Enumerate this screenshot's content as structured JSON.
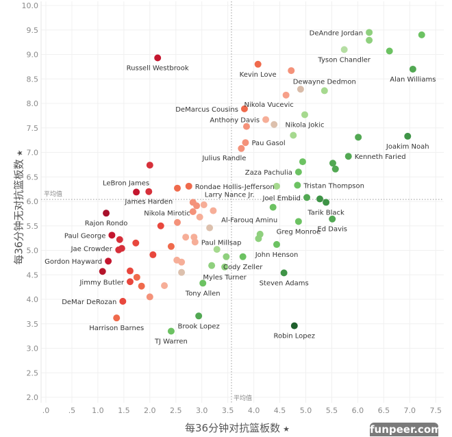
{
  "chart_data": {
    "type": "scatter",
    "title": "",
    "xlabel": "每36分钟对抗篮板数",
    "ylabel": "每36分钟无对抗篮板数",
    "xlim": [
      0,
      7.5
    ],
    "ylim": [
      2.0,
      10.0
    ],
    "x_ticks": [
      ".0",
      ".5",
      "1.0",
      "1.5",
      "2.0",
      "2.5",
      "3.0",
      "3.5",
      "4.0",
      "4.5",
      "5.0",
      "5.5",
      "6.0",
      "6.5",
      "7.0",
      "7.5"
    ],
    "y_ticks": [
      "2.0",
      "2.5",
      "3.0",
      "3.5",
      "4.0",
      "4.5",
      "5.0",
      "5.5",
      "6.0",
      "6.5",
      "7.0",
      "7.5",
      "8.0",
      "8.5",
      "9.0",
      "9.5",
      "10.0"
    ],
    "grid": true,
    "reference_lines": {
      "label": "平均值",
      "x_avg": 3.57,
      "y_avg": 6.04
    },
    "points": [
      {
        "name": "Russell Westbrook",
        "x": 2.15,
        "y": 8.93,
        "color": "#c4172f",
        "label_pos": "below"
      },
      {
        "name": "DeAndre Jordan",
        "x": 6.22,
        "y": 9.45,
        "color": "#8fd07e",
        "label_pos": "left"
      },
      {
        "name": "",
        "x": 7.23,
        "y": 9.4,
        "color": "#6cc262"
      },
      {
        "name": "",
        "x": 6.22,
        "y": 9.29,
        "color": "#8fd07e"
      },
      {
        "name": "Tyson Chandler",
        "x": 5.74,
        "y": 9.1,
        "color": "#b5deA3",
        "label_pos": "below"
      },
      {
        "name": "",
        "x": 6.61,
        "y": 9.07,
        "color": "#6cc262"
      },
      {
        "name": "Alan Williams",
        "x": 7.06,
        "y": 8.7,
        "color": "#52a853",
        "label_pos": "below"
      },
      {
        "name": "Kevin Love",
        "x": 4.08,
        "y": 8.8,
        "color": "#ef6a4c",
        "label_pos": "below"
      },
      {
        "name": "",
        "x": 4.72,
        "y": 8.67,
        "color": "#f4927a"
      },
      {
        "name": "",
        "x": 4.9,
        "y": 8.29,
        "color": "#d9bca9"
      },
      {
        "name": "Dewayne Dedmon",
        "x": 5.36,
        "y": 8.26,
        "color": "#a6d98f",
        "label_pos": "above"
      },
      {
        "name": "Nikola Vucevic",
        "x": 4.62,
        "y": 8.17,
        "color": "#f6a08a",
        "label_pos": "below-left"
      },
      {
        "name": "DeMarcus Cousins",
        "x": 3.82,
        "y": 7.89,
        "color": "#ef6a4c",
        "label_pos": "left"
      },
      {
        "name": "Nikola Jokic",
        "x": 4.98,
        "y": 7.77,
        "color": "#a6d98f",
        "label_pos": "below"
      },
      {
        "name": "Anthony Davis",
        "x": 4.23,
        "y": 7.67,
        "color": "#f6ae98",
        "label_pos": "left"
      },
      {
        "name": "",
        "x": 4.39,
        "y": 7.57,
        "color": "#dcc0ad"
      },
      {
        "name": "",
        "x": 3.86,
        "y": 7.53,
        "color": "#f4927a"
      },
      {
        "name": "",
        "x": 4.76,
        "y": 7.35,
        "color": "#a6d98f"
      },
      {
        "name": "",
        "x": 6.01,
        "y": 7.31,
        "color": "#52a853"
      },
      {
        "name": "Joakim Noah",
        "x": 6.96,
        "y": 7.33,
        "color": "#3f9447",
        "label_pos": "below"
      },
      {
        "name": "Pau Gasol",
        "x": 3.84,
        "y": 7.2,
        "color": "#f4927a",
        "label_pos": "right"
      },
      {
        "name": "Julius Randle",
        "x": 3.76,
        "y": 7.08,
        "color": "#f4927a",
        "label_pos": "below-left"
      },
      {
        "name": "Kenneth Faried",
        "x": 5.82,
        "y": 6.92,
        "color": "#52a853",
        "label_pos": "right"
      },
      {
        "name": "",
        "x": 4.94,
        "y": 6.81,
        "color": "#6cc262"
      },
      {
        "name": "",
        "x": 5.52,
        "y": 6.78,
        "color": "#52a853"
      },
      {
        "name": "",
        "x": 5.57,
        "y": 6.66,
        "color": "#52a853"
      },
      {
        "name": "",
        "x": 2.0,
        "y": 6.74,
        "color": "#d6303a"
      },
      {
        "name": "Zaza Pachulia",
        "x": 4.86,
        "y": 6.6,
        "color": "#6cc262",
        "label_pos": "left"
      },
      {
        "name": "LeBron James",
        "x": 1.74,
        "y": 6.19,
        "color": "#c4172f",
        "label_pos": "above-left"
      },
      {
        "name": "James Harden",
        "x": 1.98,
        "y": 6.2,
        "color": "#d6303a",
        "label_pos": "below"
      },
      {
        "name": "",
        "x": 2.53,
        "y": 6.27,
        "color": "#ef6a4c"
      },
      {
        "name": "Rondae Hollis-Jefferson",
        "x": 2.75,
        "y": 6.31,
        "color": "#ef6a4c",
        "label_pos": "right"
      },
      {
        "name": "",
        "x": 4.44,
        "y": 6.31,
        "color": "#a6d98f"
      },
      {
        "name": "Tristan Thompson",
        "x": 4.84,
        "y": 6.33,
        "color": "#6cc262",
        "label_pos": "right"
      },
      {
        "name": "Joel Embiid",
        "x": 5.02,
        "y": 6.08,
        "color": "#52a853",
        "label_pos": "left"
      },
      {
        "name": "",
        "x": 5.27,
        "y": 6.05,
        "color": "#3f9447"
      },
      {
        "name": "Tarik Black",
        "x": 5.39,
        "y": 5.98,
        "color": "#3f9447",
        "label_pos": "below"
      },
      {
        "name": "Larry Nance Jr.",
        "x": 2.83,
        "y": 5.98,
        "color": "#f4927a",
        "label_pos": "above-right"
      },
      {
        "name": "",
        "x": 2.9,
        "y": 5.91,
        "color": "#f4927a"
      },
      {
        "name": "",
        "x": 3.04,
        "y": 5.93,
        "color": "#f6ae98"
      },
      {
        "name": "",
        "x": 3.22,
        "y": 5.81,
        "color": "#f6ae98"
      },
      {
        "name": "",
        "x": 2.83,
        "y": 5.79,
        "color": "#f4927a"
      },
      {
        "name": "",
        "x": 2.96,
        "y": 5.68,
        "color": "#f6ae98"
      },
      {
        "name": "Nikola Mirotic",
        "x": 2.53,
        "y": 5.57,
        "color": "#f4927a",
        "label_pos": "above-left"
      },
      {
        "name": "",
        "x": 2.21,
        "y": 5.5,
        "color": "#e8473d"
      },
      {
        "name": "Rajon Rondo",
        "x": 1.16,
        "y": 5.76,
        "color": "#a8102c",
        "label_pos": "below"
      },
      {
        "name": "Al-Farouq Aminu",
        "x": 3.15,
        "y": 5.46,
        "color": "#dcc0ad",
        "label_pos": "above-right"
      },
      {
        "name": "",
        "x": 4.37,
        "y": 5.88,
        "color": "#6cc262"
      },
      {
        "name": "Greg Monroe",
        "x": 4.86,
        "y": 5.59,
        "color": "#6cc262",
        "label_pos": "below"
      },
      {
        "name": "Ed Davis",
        "x": 5.51,
        "y": 5.64,
        "color": "#52a853",
        "label_pos": "below"
      },
      {
        "name": "Paul George",
        "x": 1.27,
        "y": 5.31,
        "color": "#c4172f",
        "label_pos": "left"
      },
      {
        "name": "",
        "x": 1.42,
        "y": 5.22,
        "color": "#d6303a"
      },
      {
        "name": "",
        "x": 1.73,
        "y": 5.15,
        "color": "#e8473d"
      },
      {
        "name": "",
        "x": 2.69,
        "y": 5.27,
        "color": "#f6ae98"
      },
      {
        "name": "",
        "x": 2.85,
        "y": 5.27,
        "color": "#f6ae98"
      },
      {
        "name": "Paul Millsap",
        "x": 2.87,
        "y": 5.17,
        "color": "#f6ae98",
        "label_pos": "right"
      },
      {
        "name": "",
        "x": 2.41,
        "y": 5.08,
        "color": "#ef6a4c"
      },
      {
        "name": "",
        "x": 4.12,
        "y": 5.33,
        "color": "#8fd07e"
      },
      {
        "name": "",
        "x": 4.09,
        "y": 5.24,
        "color": "#8fd07e"
      },
      {
        "name": "John Henson",
        "x": 4.44,
        "y": 5.12,
        "color": "#6cc262",
        "label_pos": "below"
      },
      {
        "name": "",
        "x": 3.29,
        "y": 5.02,
        "color": "#a6d98f"
      },
      {
        "name": "",
        "x": 1.4,
        "y": 5.01,
        "color": "#d6303a"
      },
      {
        "name": "Jae Crowder",
        "x": 1.46,
        "y": 5.04,
        "color": "#d6303a",
        "label_pos": "left-far"
      },
      {
        "name": "",
        "x": 2.06,
        "y": 4.91,
        "color": "#e8473d"
      },
      {
        "name": "",
        "x": 3.47,
        "y": 4.87,
        "color": "#8fd07e"
      },
      {
        "name": "Cody Zeller",
        "x": 3.79,
        "y": 4.87,
        "color": "#6cc262",
        "label_pos": "below"
      },
      {
        "name": "Gordon Hayward",
        "x": 1.2,
        "y": 4.78,
        "color": "#c4172f",
        "label_pos": "left"
      },
      {
        "name": "",
        "x": 2.52,
        "y": 4.8,
        "color": "#f6ae98"
      },
      {
        "name": "",
        "x": 2.61,
        "y": 4.76,
        "color": "#f6ae98"
      },
      {
        "name": "",
        "x": 3.19,
        "y": 4.69,
        "color": "#8fd07e"
      },
      {
        "name": "Myles Turner",
        "x": 3.44,
        "y": 4.66,
        "color": "#8fd07e",
        "label_pos": "below"
      },
      {
        "name": "",
        "x": 1.09,
        "y": 4.57,
        "color": "#b5152b"
      },
      {
        "name": "",
        "x": 1.62,
        "y": 4.58,
        "color": "#e8473d"
      },
      {
        "name": "",
        "x": 1.75,
        "y": 4.45,
        "color": "#ef6a4c"
      },
      {
        "name": "",
        "x": 2.61,
        "y": 4.55,
        "color": "#dcc0ad"
      },
      {
        "name": "Steven Adams",
        "x": 4.58,
        "y": 4.54,
        "color": "#3f9447",
        "label_pos": "below"
      },
      {
        "name": "Jimmy Butler",
        "x": 1.62,
        "y": 4.36,
        "color": "#e8473d",
        "label_pos": "left"
      },
      {
        "name": "",
        "x": 1.84,
        "y": 4.27,
        "color": "#ef6a4c"
      },
      {
        "name": "",
        "x": 2.28,
        "y": 4.28,
        "color": "#f6ae98"
      },
      {
        "name": "Tony Allen",
        "x": 3.02,
        "y": 4.33,
        "color": "#6cc262",
        "label_pos": "below"
      },
      {
        "name": "",
        "x": 2.0,
        "y": 4.05,
        "color": "#f4927a"
      },
      {
        "name": "DeMar DeRozan",
        "x": 1.48,
        "y": 3.96,
        "color": "#e8473d",
        "label_pos": "left"
      },
      {
        "name": "Brook Lopez",
        "x": 2.94,
        "y": 3.66,
        "color": "#52a853",
        "label_pos": "below"
      },
      {
        "name": "Harrison Barnes",
        "x": 1.36,
        "y": 3.62,
        "color": "#ef6a4c",
        "label_pos": "below"
      },
      {
        "name": "TJ Warren",
        "x": 2.41,
        "y": 3.35,
        "color": "#6cc262",
        "label_pos": "below"
      },
      {
        "name": "Robin Lopez",
        "x": 4.78,
        "y": 3.46,
        "color": "#1f5f2c",
        "label_pos": "below"
      }
    ]
  },
  "watermark": "funpeer.com",
  "icons": {
    "axis_pin": "pin-icon"
  }
}
